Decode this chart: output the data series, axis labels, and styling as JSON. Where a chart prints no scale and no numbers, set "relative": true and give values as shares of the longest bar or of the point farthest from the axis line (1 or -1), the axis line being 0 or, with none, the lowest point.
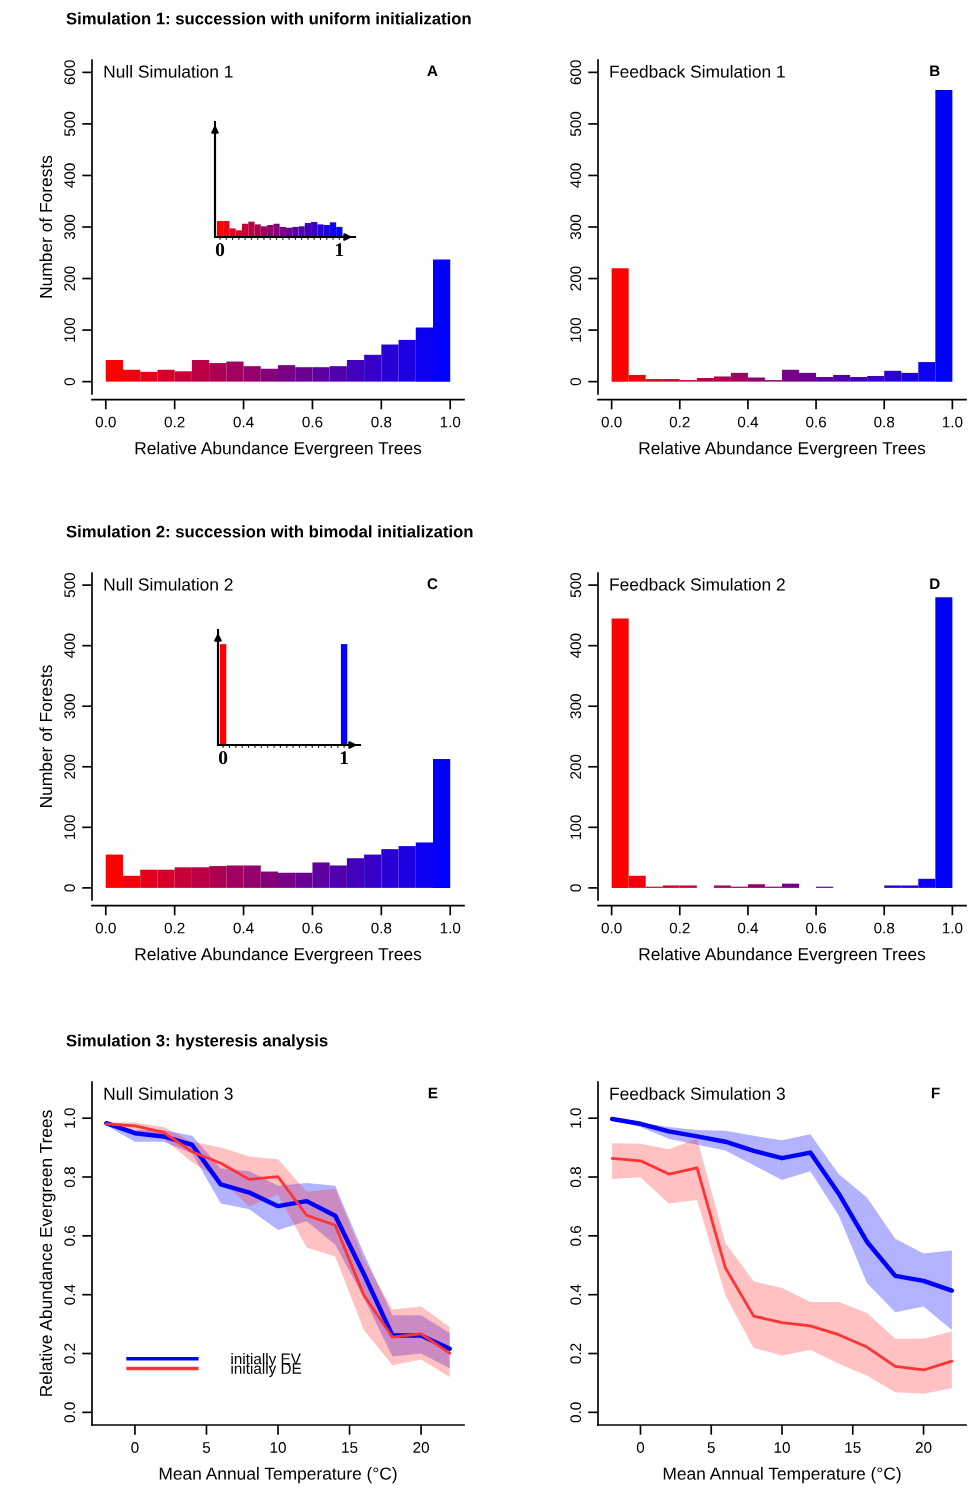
{
  "chart_data": [
    {
      "type": "histogram",
      "title": "Simulation 1: succession with uniform initialization",
      "ylabel": "Number of Forests",
      "xlabel": "Relative Abundance Evergreen Trees",
      "annotations": [
        "Null Simulation 1",
        "A"
      ],
      "bins": [
        0,
        0.05,
        0.1,
        0.15,
        0.2,
        0.25,
        0.3,
        0.35,
        0.4,
        0.45,
        0.5,
        0.55,
        0.6,
        0.65,
        0.7,
        0.75,
        0.8,
        0.85,
        0.9,
        0.95,
        1
      ],
      "values": [
        42,
        23,
        19,
        23,
        20,
        42,
        36,
        39,
        30,
        25,
        32,
        28,
        28,
        30,
        42,
        52,
        72,
        81,
        105,
        237
      ],
      "colors": [
        "#ff0000",
        "#f2000d",
        "#e4001b",
        "#d70028",
        "#c90036",
        "#bc0043",
        "#ae0051",
        "#a1005e",
        "#94006b",
        "#860079",
        "#790086",
        "#6b0094",
        "#5e00a1",
        "#5100ae",
        "#4300bc",
        "#3600c9",
        "#2800d7",
        "#1b00e4",
        "#0d00f2",
        "#0000ff"
      ],
      "xlim": [
        -0.04,
        1.04
      ],
      "ylim": [
        -24,
        624
      ],
      "xticks": [
        {
          "value": 0,
          "label": "0.0"
        },
        {
          "value": 0.2,
          "label": "0.2"
        },
        {
          "value": 0.4,
          "label": "0.4"
        },
        {
          "value": 0.6,
          "label": "0.6"
        },
        {
          "value": 0.8,
          "label": "0.8"
        },
        {
          "value": 1,
          "label": "1.0"
        }
      ],
      "yticks": [
        0,
        100,
        200,
        300,
        400,
        500,
        600
      ]
    },
    {
      "type": "bar",
      "relative": true,
      "categories": [
        "0",
        null,
        null,
        null,
        null,
        null,
        null,
        null,
        null,
        null,
        null,
        null,
        null,
        null,
        null,
        null,
        null,
        null,
        null,
        "1"
      ],
      "values": [
        1,
        1,
        0.54,
        0.42,
        0.83,
        0.96,
        0.79,
        0.67,
        0.75,
        0.83,
        0.63,
        0.58,
        0.63,
        0.67,
        0.88,
        0.94,
        0.79,
        0.75,
        0.92,
        0.63
      ],
      "colors": [
        "#ff0000",
        "#f2000d",
        "#e4001b",
        "#d70028",
        "#c90036",
        "#bc0043",
        "#ae0051",
        "#a1005e",
        "#94006b",
        "#860079",
        "#790086",
        "#6b0094",
        "#5e00a1",
        "#5100ae",
        "#4300bc",
        "#3600c9",
        "#2800d7",
        "#1b00e4",
        "#0d00f2",
        "#0000ff"
      ]
    },
    {
      "type": "histogram",
      "xlabel": "Relative Abundance Evergreen Trees",
      "annotations": [
        "Feedback Simulation 1",
        "B"
      ],
      "bins": [
        0,
        0.05,
        0.1,
        0.15,
        0.2,
        0.25,
        0.3,
        0.35,
        0.4,
        0.45,
        0.5,
        0.55,
        0.6,
        0.65,
        0.7,
        0.75,
        0.8,
        0.85,
        0.9,
        0.95,
        1
      ],
      "values": [
        220,
        13,
        5,
        5,
        3,
        7,
        10,
        17,
        8,
        3,
        23,
        17,
        9,
        13,
        9,
        11,
        21,
        17,
        38,
        566
      ],
      "colors": [
        "#ff0000",
        "#f2000d",
        "#e4001b",
        "#d70028",
        "#c90036",
        "#bc0043",
        "#ae0051",
        "#a1005e",
        "#94006b",
        "#860079",
        "#790086",
        "#6b0094",
        "#5e00a1",
        "#5100ae",
        "#4300bc",
        "#3600c9",
        "#2800d7",
        "#1b00e4",
        "#0d00f2",
        "#0000ff"
      ],
      "xlim": [
        -0.04,
        1.04
      ],
      "ylim": [
        -24,
        624
      ],
      "xticks": [
        {
          "value": 0,
          "label": "0.0"
        },
        {
          "value": 0.2,
          "label": "0.2"
        },
        {
          "value": 0.4,
          "label": "0.4"
        },
        {
          "value": 0.6,
          "label": "0.6"
        },
        {
          "value": 0.8,
          "label": "0.8"
        },
        {
          "value": 1,
          "label": "1.0"
        }
      ],
      "yticks": [
        0,
        100,
        200,
        300,
        400,
        500,
        600
      ]
    },
    {
      "type": "histogram",
      "title": "Simulation 2: succession with bimodal initialization",
      "ylabel": "Number of Forests",
      "xlabel": "Relative Abundance Evergreen Trees",
      "annotations": [
        "Null Simulation 2",
        "C"
      ],
      "bins": [
        0,
        0.05,
        0.1,
        0.15,
        0.2,
        0.25,
        0.3,
        0.35,
        0.4,
        0.45,
        0.5,
        0.55,
        0.6,
        0.65,
        0.7,
        0.75,
        0.8,
        0.85,
        0.9,
        0.95,
        1
      ],
      "values": [
        55,
        20,
        30,
        30,
        34,
        34,
        36,
        37,
        37,
        27,
        25,
        25,
        42,
        37,
        49,
        55,
        64,
        69,
        75,
        213
      ],
      "colors": [
        "#ff0000",
        "#f2000d",
        "#e4001b",
        "#d70028",
        "#c90036",
        "#bc0043",
        "#ae0051",
        "#a1005e",
        "#94006b",
        "#860079",
        "#790086",
        "#6b0094",
        "#5e00a1",
        "#5100ae",
        "#4300bc",
        "#3600c9",
        "#2800d7",
        "#1b00e4",
        "#0d00f2",
        "#0000ff"
      ],
      "xlim": [
        -0.04,
        1.04
      ],
      "ylim": [
        -20,
        520
      ],
      "xticks": [
        {
          "value": 0,
          "label": "0.0"
        },
        {
          "value": 0.2,
          "label": "0.2"
        },
        {
          "value": 0.4,
          "label": "0.4"
        },
        {
          "value": 0.6,
          "label": "0.6"
        },
        {
          "value": 0.8,
          "label": "0.8"
        },
        {
          "value": 1,
          "label": "1.0"
        }
      ],
      "yticks": [
        0,
        100,
        200,
        300,
        400,
        500
      ]
    },
    {
      "type": "bar",
      "relative": true,
      "categories": [
        "0",
        null,
        null,
        null,
        null,
        null,
        null,
        null,
        null,
        null,
        null,
        null,
        null,
        null,
        null,
        null,
        null,
        null,
        null,
        "1"
      ],
      "values": [
        1,
        0,
        0,
        0,
        0,
        0,
        0,
        0,
        0,
        0,
        0,
        0,
        0,
        0,
        0,
        0,
        0,
        0,
        0,
        1
      ],
      "colors": [
        "#ff0000",
        "#f2000d",
        "#e4001b",
        "#d70028",
        "#c90036",
        "#bc0043",
        "#ae0051",
        "#a1005e",
        "#94006b",
        "#860079",
        "#790086",
        "#6b0094",
        "#5e00a1",
        "#5100ae",
        "#4300bc",
        "#3600c9",
        "#2800d7",
        "#1b00e4",
        "#0d00f2",
        "#0000ff"
      ]
    },
    {
      "type": "histogram",
      "xlabel": "Relative Abundance Evergreen Trees",
      "annotations": [
        "Feedback Simulation 2",
        "D"
      ],
      "bins": [
        0,
        0.05,
        0.1,
        0.15,
        0.2,
        0.25,
        0.3,
        0.35,
        0.4,
        0.45,
        0.5,
        0.55,
        0.6,
        0.65,
        0.7,
        0.75,
        0.8,
        0.85,
        0.9,
        0.95,
        1
      ],
      "values": [
        445,
        20,
        2,
        4,
        4,
        0,
        4,
        2,
        6,
        2,
        7,
        0,
        2,
        0,
        0,
        0,
        4,
        4,
        15,
        480
      ],
      "colors": [
        "#ff0000",
        "#f2000d",
        "#e4001b",
        "#d70028",
        "#c90036",
        "#bc0043",
        "#ae0051",
        "#a1005e",
        "#94006b",
        "#860079",
        "#790086",
        "#6b0094",
        "#5e00a1",
        "#5100ae",
        "#4300bc",
        "#3600c9",
        "#2800d7",
        "#1b00e4",
        "#0d00f2",
        "#0000ff"
      ],
      "xlim": [
        -0.04,
        1.04
      ],
      "ylim": [
        -20,
        520
      ],
      "xticks": [
        {
          "value": 0,
          "label": "0.0"
        },
        {
          "value": 0.2,
          "label": "0.2"
        },
        {
          "value": 0.4,
          "label": "0.4"
        },
        {
          "value": 0.6,
          "label": "0.6"
        },
        {
          "value": 0.8,
          "label": "0.8"
        },
        {
          "value": 1,
          "label": "1.0"
        }
      ],
      "yticks": [
        0,
        100,
        200,
        300,
        400,
        500
      ]
    },
    {
      "type": "line",
      "title": "Simulation 3: hysteresis analysis",
      "ylabel": "Relative Abundance Evergreen Trees",
      "xlabel": "Mean Annual Temperature (°C)",
      "annotations": [
        "Null Simulation 3",
        "E"
      ],
      "legend": "bottom left",
      "x": [
        -2,
        0,
        2,
        4,
        6,
        8,
        10,
        12,
        14,
        16,
        18,
        20,
        22
      ],
      "series": [
        {
          "name": "initially EV",
          "color": "#0000ff",
          "values": [
            0.983,
            0.949,
            0.938,
            0.909,
            0.775,
            0.747,
            0.701,
            0.718,
            0.668,
            0.47,
            0.261,
            0.261,
            0.216
          ],
          "lower": [
            0.975,
            0.92,
            0.92,
            0.88,
            0.71,
            0.69,
            0.62,
            0.65,
            0.57,
            0.39,
            0.19,
            0.2,
            0.15
          ],
          "upper": [
            0.985,
            0.96,
            0.96,
            0.94,
            0.83,
            0.82,
            0.77,
            0.78,
            0.77,
            0.54,
            0.33,
            0.33,
            0.27
          ]
        },
        {
          "name": "initially DE",
          "color": "#ff3333",
          "values": [
            0.981,
            0.974,
            0.952,
            0.886,
            0.847,
            0.792,
            0.801,
            0.67,
            0.636,
            0.398,
            0.256,
            0.267,
            0.201
          ],
          "lower": [
            0.975,
            0.96,
            0.93,
            0.85,
            0.79,
            0.7,
            0.74,
            0.56,
            0.53,
            0.28,
            0.16,
            0.18,
            0.12
          ],
          "upper": [
            0.985,
            0.985,
            0.97,
            0.92,
            0.9,
            0.87,
            0.86,
            0.75,
            0.76,
            0.52,
            0.35,
            0.36,
            0.29
          ]
        }
      ],
      "xlim": [
        -3,
        23
      ],
      "ylim": [
        -0.043,
        1.123
      ],
      "xticks": [
        0,
        5,
        10,
        15,
        20
      ],
      "yticks": [
        {
          "value": 0,
          "label": "0.0"
        },
        {
          "value": 0.2,
          "label": "0.2"
        },
        {
          "value": 0.4,
          "label": "0.4"
        },
        {
          "value": 0.6,
          "label": "0.6"
        },
        {
          "value": 0.8,
          "label": "0.8"
        },
        {
          "value": 1,
          "label": "1.0"
        }
      ]
    },
    {
      "type": "line",
      "xlabel": "Mean Annual Temperature (°C)",
      "annotations": [
        "Feedback Simulation 3",
        "F"
      ],
      "x": [
        -2,
        0,
        2,
        4,
        6,
        8,
        10,
        12,
        14,
        16,
        18,
        20,
        22
      ],
      "series": [
        {
          "color": "#0000ff",
          "values": [
            0.997,
            0.981,
            0.955,
            0.938,
            0.92,
            0.889,
            0.864,
            0.883,
            0.744,
            0.58,
            0.464,
            0.447,
            0.414
          ],
          "lower": [
            0.993,
            0.97,
            0.93,
            0.91,
            0.89,
            0.84,
            0.79,
            0.82,
            0.67,
            0.44,
            0.34,
            0.36,
            0.28
          ],
          "upper": [
            0.997,
            0.985,
            0.97,
            0.96,
            0.957,
            0.94,
            0.925,
            0.945,
            0.81,
            0.73,
            0.59,
            0.54,
            0.55
          ]
        },
        {
          "color": "#ff3333",
          "values": [
            0.863,
            0.855,
            0.81,
            0.831,
            0.491,
            0.327,
            0.305,
            0.294,
            0.264,
            0.222,
            0.156,
            0.144,
            0.174
          ],
          "lower": [
            0.793,
            0.799,
            0.71,
            0.722,
            0.398,
            0.219,
            0.193,
            0.213,
            0.165,
            0.125,
            0.068,
            0.063,
            0.082
          ],
          "upper": [
            0.915,
            0.913,
            0.894,
            0.93,
            0.576,
            0.445,
            0.423,
            0.375,
            0.375,
            0.338,
            0.25,
            0.25,
            0.276
          ]
        }
      ],
      "xlim": [
        -3,
        23
      ],
      "ylim": [
        -0.043,
        1.123
      ],
      "xticks": [
        0,
        5,
        10,
        15,
        20
      ],
      "yticks": [
        {
          "value": 0,
          "label": "0.0"
        },
        {
          "value": 0.2,
          "label": "0.2"
        },
        {
          "value": 0.4,
          "label": "0.4"
        },
        {
          "value": 0.6,
          "label": "0.6"
        },
        {
          "value": 0.8,
          "label": "0.8"
        },
        {
          "value": 1,
          "label": "1.0"
        }
      ]
    }
  ]
}
